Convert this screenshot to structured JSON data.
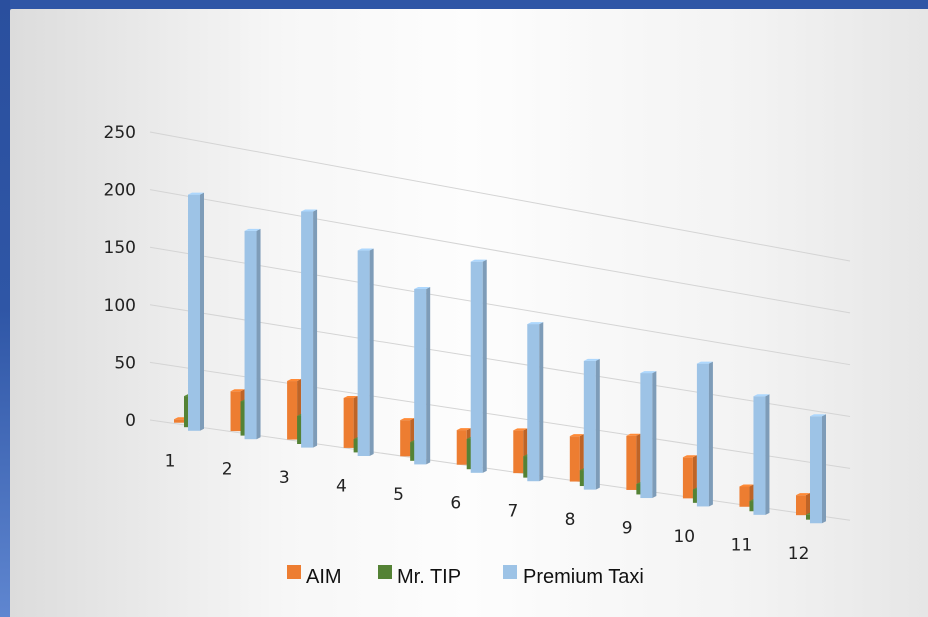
{
  "chart_data": {
    "type": "bar",
    "categories": [
      "1",
      "2",
      "3",
      "4",
      "5",
      "6",
      "7",
      "8",
      "9",
      "10",
      "11",
      "12"
    ],
    "series": [
      {
        "name": "AIM",
        "color": "#ed7d31",
        "values": [
          3,
          35,
          52,
          45,
          33,
          32,
          40,
          43,
          52,
          40,
          20,
          20
        ]
      },
      {
        "name": "Mr. TIP",
        "color": "#548235",
        "values": [
          27,
          30,
          25,
          12,
          17,
          28,
          20,
          15,
          10,
          13,
          10,
          5
        ]
      },
      {
        "name": "Premium Taxi",
        "color": "#9dc3e6",
        "values": [
          205,
          183,
          210,
          185,
          160,
          195,
          147,
          122,
          120,
          139,
          117,
          107
        ]
      }
    ],
    "yticks": [
      "0",
      "50",
      "100",
      "150",
      "200",
      "250"
    ],
    "ylim": [
      0,
      250
    ],
    "legend_position": "bottom",
    "grid": true,
    "projection": "3d-perspective"
  }
}
